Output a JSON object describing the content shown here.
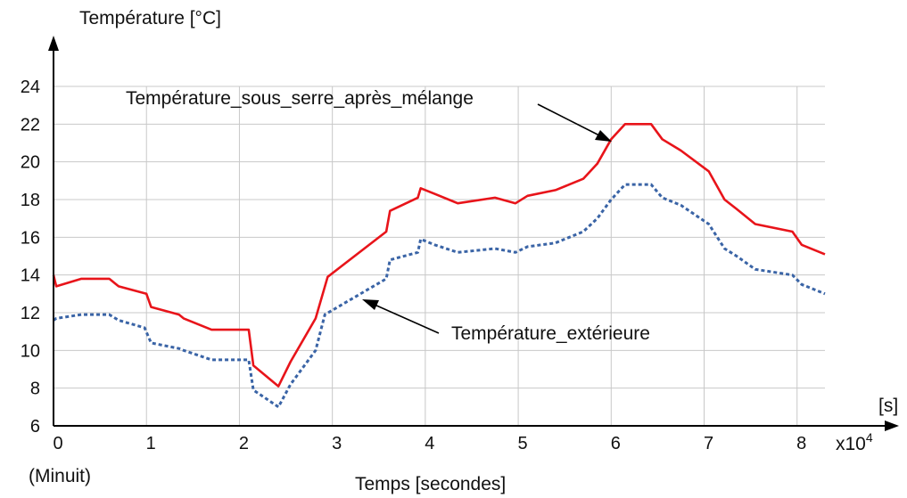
{
  "chart_data": {
    "type": "line",
    "title": "",
    "ylabel": "Température [°C]",
    "xlabel": "Temps [secondes]",
    "x_unit": "[s]",
    "x_multiplier": "x10",
    "x_multiplier_exp": "4",
    "x_origin_note": "(Minuit)",
    "xlim": [
      0,
      8.3
    ],
    "ylim": [
      6,
      24
    ],
    "x_ticks": [
      0,
      1,
      2,
      3,
      4,
      5,
      6,
      7,
      8
    ],
    "y_ticks": [
      6,
      8,
      10,
      12,
      14,
      16,
      18,
      20,
      22,
      24
    ],
    "grid": true,
    "series": [
      {
        "name": "Température_sous_serre_après_mélange",
        "color": "#e8141a",
        "style": "solid",
        "x": [
          0,
          0.03,
          0.3,
          0.6,
          0.7,
          1.0,
          1.05,
          1.35,
          1.4,
          1.7,
          2.1,
          2.15,
          2.42,
          2.55,
          2.82,
          2.95,
          3.58,
          3.62,
          3.92,
          3.95,
          4.1,
          4.35,
          4.75,
          4.97,
          5.1,
          5.4,
          5.55,
          5.7,
          5.85,
          6.0,
          6.15,
          6.43,
          6.55,
          6.75,
          7.05,
          7.22,
          7.35,
          7.55,
          7.95,
          8.05,
          8.3
        ],
        "y": [
          14.0,
          13.4,
          13.8,
          13.8,
          13.4,
          13.0,
          12.3,
          11.9,
          11.7,
          11.1,
          11.1,
          9.2,
          8.1,
          9.4,
          11.7,
          13.9,
          16.3,
          17.4,
          18.1,
          18.6,
          18.3,
          17.8,
          18.1,
          17.8,
          18.2,
          18.5,
          18.8,
          19.1,
          19.9,
          21.2,
          22.0,
          22.0,
          21.2,
          20.6,
          19.5,
          18.0,
          17.5,
          16.7,
          16.3,
          15.6,
          15.1
        ]
      },
      {
        "name": "Température_extérieure",
        "color": "#3a64a6",
        "style": "dashed",
        "x": [
          0,
          0.03,
          0.3,
          0.6,
          0.7,
          0.98,
          1.05,
          1.35,
          1.4,
          1.7,
          2.1,
          2.15,
          2.42,
          2.55,
          2.82,
          2.92,
          3.58,
          3.62,
          3.92,
          3.95,
          4.1,
          4.35,
          4.75,
          4.97,
          5.1,
          5.4,
          5.55,
          5.7,
          5.85,
          6.0,
          6.15,
          6.43,
          6.55,
          6.75,
          7.05,
          7.22,
          7.35,
          7.55,
          7.95,
          8.05,
          8.3
        ],
        "y": [
          11.6,
          11.7,
          11.9,
          11.9,
          11.6,
          11.2,
          10.4,
          10.1,
          10.0,
          9.5,
          9.5,
          7.9,
          7.0,
          8.2,
          10.0,
          11.9,
          13.8,
          14.8,
          15.2,
          15.9,
          15.6,
          15.2,
          15.4,
          15.2,
          15.5,
          15.7,
          16.0,
          16.3,
          17.0,
          18.0,
          18.8,
          18.8,
          18.1,
          17.7,
          16.7,
          15.4,
          15.0,
          14.3,
          14.0,
          13.5,
          13.0
        ]
      }
    ],
    "annotations": [
      {
        "text": "Température_sous_serre_après_mélange",
        "target_series": 0
      },
      {
        "text": "Température_extérieure",
        "target_series": 1
      }
    ]
  }
}
